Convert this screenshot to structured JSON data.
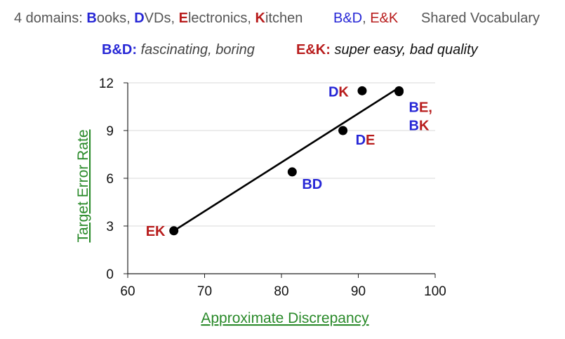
{
  "header": {
    "domains_prefix": "4 domains: ",
    "domains": [
      {
        "initial": "B",
        "rest": "ooks",
        "color": "blue"
      },
      {
        "initial": "D",
        "rest": "VDs",
        "color": "blue"
      },
      {
        "initial": "E",
        "rest": "lectronics",
        "color": "red"
      },
      {
        "initial": "K",
        "rest": "itchen",
        "color": "red"
      }
    ],
    "pair_bd": "B&D",
    "pair_sep": ", ",
    "pair_ek": "E&K",
    "shared_vocab": "Shared Vocabulary",
    "bd_label": "B&D:",
    "bd_words": "fascinating, boring",
    "ek_label": "E&K:",
    "ek_words": "super easy, bad quality"
  },
  "colors": {
    "blue": "#2727d6",
    "red": "#b81c1c",
    "axis_label_green": "#2a8a2a",
    "grid": "#d9d9d9",
    "point": "#000000"
  },
  "chart_data": {
    "type": "scatter",
    "xlabel": "Approximate Discrepancy",
    "ylabel": "Target Error Rate",
    "xlim": [
      60,
      100
    ],
    "ylim": [
      0,
      12
    ],
    "xticks": [
      60,
      70,
      80,
      90,
      100
    ],
    "yticks": [
      0,
      3,
      6,
      9,
      12
    ],
    "grid": "horizontal",
    "points": [
      {
        "x": 66,
        "y": 2.7,
        "label": [
          {
            "t": "E",
            "c": "red"
          },
          {
            "t": "K",
            "c": "red"
          }
        ]
      },
      {
        "x": 81.4,
        "y": 6.4,
        "label": [
          {
            "t": "B",
            "c": "blue"
          },
          {
            "t": "D",
            "c": "blue"
          }
        ]
      },
      {
        "x": 88,
        "y": 9.0,
        "label": [
          {
            "t": "D",
            "c": "blue"
          },
          {
            "t": "E",
            "c": "red"
          }
        ]
      },
      {
        "x": 90.5,
        "y": 11.5,
        "label": [
          {
            "t": "D",
            "c": "blue"
          },
          {
            "t": "K",
            "c": "red"
          }
        ]
      },
      {
        "x": 95.3,
        "y": 11.5,
        "label": [
          {
            "t": "B",
            "c": "blue"
          },
          {
            "t": "E,",
            "c": "red"
          }
        ]
      },
      {
        "x": 95.3,
        "y": 11.45,
        "label": [
          {
            "t": "B",
            "c": "blue"
          },
          {
            "t": "K",
            "c": "red"
          }
        ]
      }
    ],
    "fit_line": {
      "x": [
        66,
        95.3
      ],
      "y": [
        2.7,
        11.7
      ]
    }
  }
}
